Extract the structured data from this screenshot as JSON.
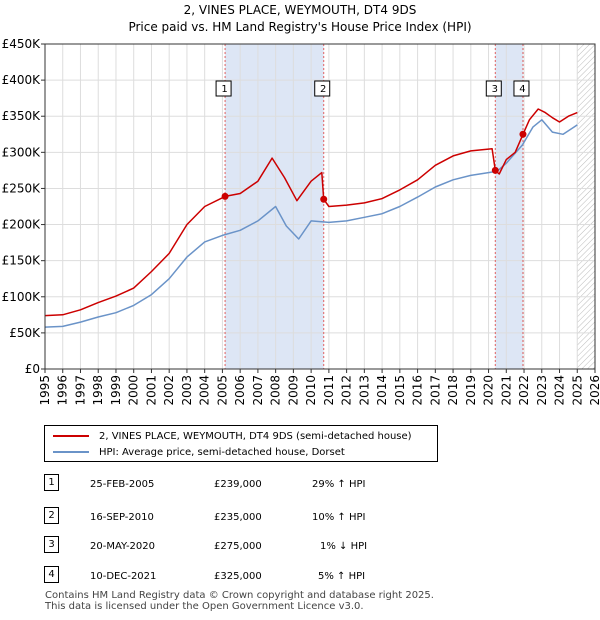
{
  "title_line1": "2, VINES PLACE, WEYMOUTH, DT4 9DS",
  "title_line2": "Price paid vs. HM Land Registry's House Price Index (HPI)",
  "colors": {
    "property": "#cc0000",
    "hpi": "#6a93c8",
    "band": "#dde6f5",
    "marker_line": "#e06060"
  },
  "legend": {
    "property": "2, VINES PLACE, WEYMOUTH, DT4 9DS (semi-detached house)",
    "hpi": "HPI: Average price, semi-detached house, Dorset"
  },
  "sales": [
    {
      "num": "1",
      "date": "25-FEB-2005",
      "price": "£239,000",
      "hpi": "29% ↑ HPI",
      "x": 2005.15,
      "y": 239000
    },
    {
      "num": "2",
      "date": "16-SEP-2010",
      "price": "£235,000",
      "hpi": "10% ↑ HPI",
      "x": 2010.71,
      "y": 235000
    },
    {
      "num": "3",
      "date": "20-MAY-2020",
      "price": "£275,000",
      "hpi": "1% ↓ HPI",
      "x": 2020.38,
      "y": 275000
    },
    {
      "num": "4",
      "date": "10-DEC-2021",
      "price": "£325,000",
      "hpi": "5% ↑ HPI",
      "x": 2021.94,
      "y": 325000
    }
  ],
  "footer_line1": "Contains HM Land Registry data © Crown copyright and database right 2025.",
  "footer_line2": "This data is licensed under the Open Government Licence v3.0.",
  "chart_data": {
    "type": "line",
    "xlim": [
      1995,
      2026
    ],
    "ylim": [
      0,
      450000
    ],
    "x_ticks": [
      1995,
      1996,
      1997,
      1998,
      1999,
      2000,
      2001,
      2002,
      2003,
      2004,
      2005,
      2006,
      2007,
      2008,
      2009,
      2010,
      2011,
      2012,
      2013,
      2014,
      2015,
      2016,
      2017,
      2018,
      2019,
      2020,
      2021,
      2022,
      2023,
      2024,
      2025,
      2026
    ],
    "y_ticks": [
      {
        "value": 0,
        "label": "£0"
      },
      {
        "value": 50000,
        "label": "£50K"
      },
      {
        "value": 100000,
        "label": "£100K"
      },
      {
        "value": 150000,
        "label": "£150K"
      },
      {
        "value": 200000,
        "label": "£200K"
      },
      {
        "value": 250000,
        "label": "£250K"
      },
      {
        "value": 300000,
        "label": "£300K"
      },
      {
        "value": 350000,
        "label": "£350K"
      },
      {
        "value": 400000,
        "label": "£400K"
      },
      {
        "value": 450000,
        "label": "£450K"
      }
    ],
    "shaded_ranges": [
      [
        2005.15,
        2010.71
      ],
      [
        2020.38,
        2021.94
      ]
    ],
    "hatched_from": 2025.0,
    "series": [
      {
        "name": "2, VINES PLACE, WEYMOUTH, DT4 9DS (semi-detached house)",
        "x": [
          1995,
          1996,
          1997,
          1998,
          1999,
          2000,
          2001,
          2002,
          2003,
          2004,
          2005.15,
          2006,
          2007,
          2007.8,
          2008.5,
          2009.2,
          2010,
          2010.6,
          2010.71,
          2011,
          2012,
          2013,
          2014,
          2015,
          2016,
          2017,
          2018,
          2019,
          2020.2,
          2020.38,
          2020.6,
          2021,
          2021.5,
          2021.94,
          2022.3,
          2022.8,
          2023.2,
          2023.6,
          2024,
          2024.5,
          2025
        ],
        "y": [
          74000,
          75000,
          82000,
          92000,
          101000,
          112000,
          135000,
          160000,
          200000,
          225000,
          239000,
          243000,
          260000,
          292000,
          265000,
          233000,
          260000,
          272000,
          235000,
          225000,
          227000,
          230000,
          236000,
          248000,
          262000,
          282000,
          295000,
          302000,
          305000,
          275000,
          270000,
          290000,
          300000,
          325000,
          345000,
          360000,
          355000,
          348000,
          342000,
          350000,
          355000
        ]
      },
      {
        "name": "HPI: Average price, semi-detached house, Dorset",
        "x": [
          1995,
          1996,
          1997,
          1998,
          1999,
          2000,
          2001,
          2002,
          2003,
          2004,
          2005,
          2006,
          2007,
          2008,
          2008.6,
          2009.3,
          2010,
          2011,
          2012,
          2013,
          2014,
          2015,
          2016,
          2017,
          2018,
          2019,
          2020,
          2020.5,
          2021,
          2021.9,
          2022.5,
          2023,
          2023.6,
          2024.2,
          2025
        ],
        "y": [
          58000,
          59000,
          65000,
          72000,
          78000,
          88000,
          103000,
          125000,
          155000,
          176000,
          185000,
          192000,
          205000,
          225000,
          198000,
          180000,
          205000,
          203000,
          205000,
          210000,
          215000,
          225000,
          238000,
          252000,
          262000,
          268000,
          272000,
          274000,
          285000,
          310000,
          335000,
          345000,
          328000,
          325000,
          338000
        ]
      }
    ]
  }
}
